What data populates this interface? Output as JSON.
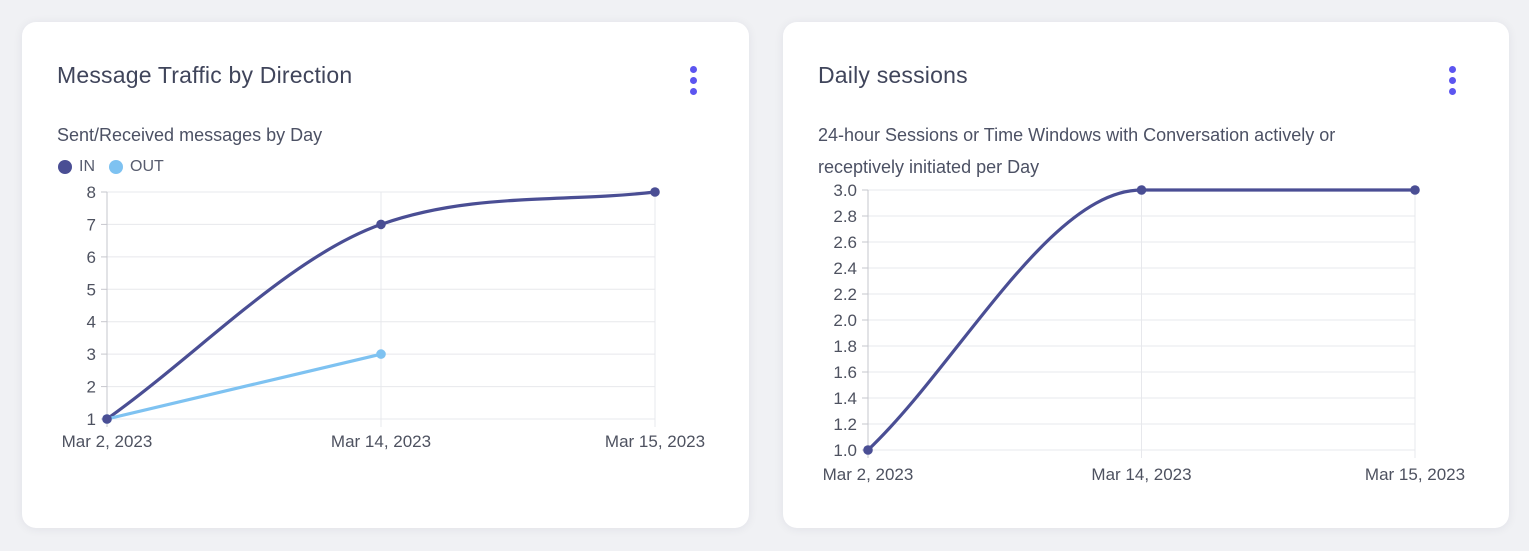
{
  "theme": {
    "page_bg": "#f0f1f4",
    "card_bg": "#ffffff",
    "accent": "#5c55f0",
    "title_color": "#40455b",
    "subtitle_color": "#4c5164",
    "tick_color": "#4e5260",
    "grid_color": "#e7e8ec",
    "axis_color": "#c6c7cd",
    "series_dark": "#4a4e94",
    "series_light": "#7ec2f1"
  },
  "cards": [
    {
      "title": "Message Traffic by Direction",
      "subtitle_lines": [
        "Sent/Received messages by Day"
      ]
    },
    {
      "title": "Daily sessions",
      "subtitle_lines": [
        "24-hour Sessions or Time Windows with Conversation actively or",
        "receptively initiated per Day"
      ]
    }
  ],
  "chart_data": [
    {
      "type": "line",
      "title": "Message Traffic by Direction",
      "subtitle": "Sent/Received messages by Day",
      "categories": [
        "Mar 2, 2023",
        "Mar 14, 2023",
        "Mar 15, 2023"
      ],
      "series": [
        {
          "name": "IN",
          "color": "#4a4e94",
          "values": [
            1,
            7,
            8
          ]
        },
        {
          "name": "OUT",
          "color": "#7ec2f1",
          "values": [
            1,
            3,
            null
          ]
        }
      ],
      "ylim": [
        1,
        8
      ],
      "yticks": [
        8,
        7,
        6,
        5,
        4,
        3,
        2,
        1
      ],
      "ytick_decimals": 0,
      "grid": true,
      "legend_position": "top-left",
      "curve": "monotone"
    },
    {
      "type": "line",
      "title": "Daily sessions",
      "subtitle": "24-hour Sessions or Time Windows with Conversation actively or receptively initiated per Day",
      "categories": [
        "Mar 2, 2023",
        "Mar 14, 2023",
        "Mar 15, 2023"
      ],
      "series": [
        {
          "name": "Daily sessions",
          "color": "#4a4e94",
          "values": [
            1.0,
            3.0,
            3.0
          ]
        }
      ],
      "ylim": [
        1.0,
        3.0
      ],
      "yticks": [
        3.0,
        2.8,
        2.6,
        2.4,
        2.2,
        2.0,
        1.8,
        1.6,
        1.4,
        1.2,
        1.0
      ],
      "ytick_decimals": 1,
      "grid": true,
      "legend_position": "none",
      "curve": "monotone"
    }
  ]
}
